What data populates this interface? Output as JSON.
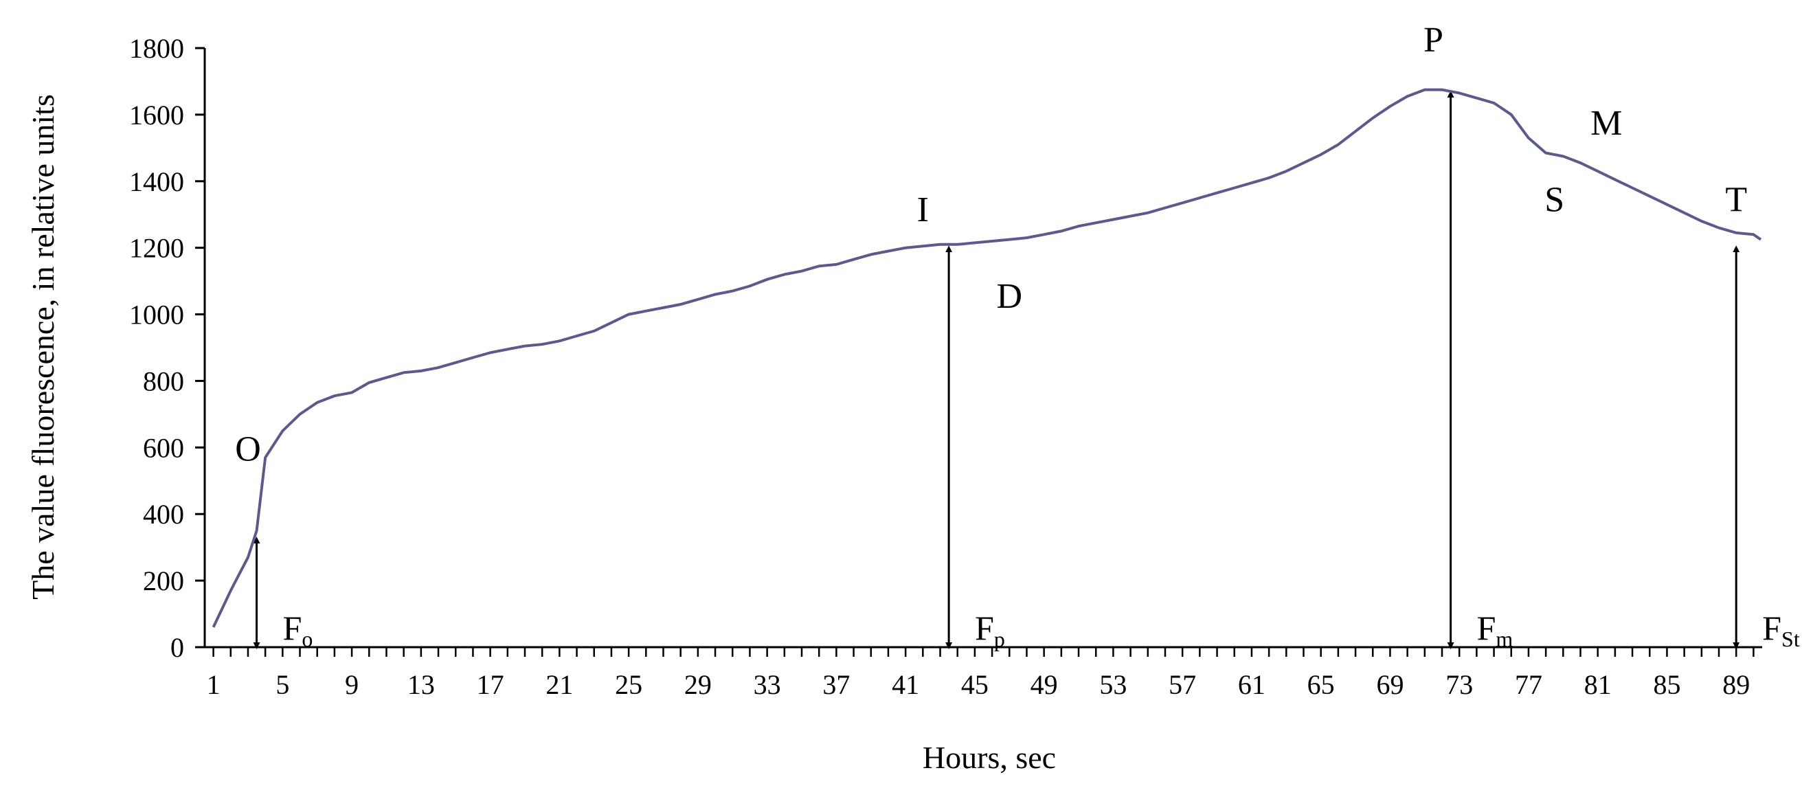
{
  "chart_data": {
    "type": "line",
    "xlabel": "Hours, sec",
    "ylabel": "The value fluorescence, in relative units",
    "xlim": [
      0.5,
      90.5
    ],
    "ylim": [
      0,
      1800
    ],
    "x_ticks": [
      "1",
      "5",
      "9",
      "13",
      "17",
      "21",
      "25",
      "29",
      "33",
      "37",
      "41",
      "45",
      "49",
      "53",
      "57",
      "61",
      "65",
      "69",
      "73",
      "77",
      "81",
      "85",
      "89"
    ],
    "y_ticks": [
      "0",
      "200",
      "400",
      "600",
      "800",
      "1000",
      "1200",
      "1400",
      "1600",
      "1800"
    ],
    "grid": false,
    "line_color": "#5a5a8c",
    "series": [
      {
        "points": [
          [
            1,
            60
          ],
          [
            2,
            170
          ],
          [
            3,
            270
          ],
          [
            3.5,
            350
          ],
          [
            4,
            570
          ],
          [
            5,
            650
          ],
          [
            6,
            700
          ],
          [
            7,
            735
          ],
          [
            8,
            755
          ],
          [
            9,
            765
          ],
          [
            10,
            795
          ],
          [
            11,
            810
          ],
          [
            12,
            825
          ],
          [
            13,
            830
          ],
          [
            14,
            840
          ],
          [
            15,
            855
          ],
          [
            16,
            870
          ],
          [
            17,
            885
          ],
          [
            18,
            895
          ],
          [
            19,
            905
          ],
          [
            20,
            910
          ],
          [
            21,
            920
          ],
          [
            22,
            935
          ],
          [
            23,
            950
          ],
          [
            24,
            975
          ],
          [
            25,
            1000
          ],
          [
            26,
            1010
          ],
          [
            27,
            1020
          ],
          [
            28,
            1030
          ],
          [
            29,
            1045
          ],
          [
            30,
            1060
          ],
          [
            31,
            1070
          ],
          [
            32,
            1085
          ],
          [
            33,
            1105
          ],
          [
            34,
            1120
          ],
          [
            35,
            1130
          ],
          [
            36,
            1145
          ],
          [
            37,
            1150
          ],
          [
            38,
            1165
          ],
          [
            39,
            1180
          ],
          [
            40,
            1190
          ],
          [
            41,
            1200
          ],
          [
            42,
            1205
          ],
          [
            43,
            1210
          ],
          [
            44,
            1210
          ],
          [
            45,
            1215
          ],
          [
            46,
            1220
          ],
          [
            47,
            1225
          ],
          [
            48,
            1230
          ],
          [
            49,
            1240
          ],
          [
            50,
            1250
          ],
          [
            51,
            1265
          ],
          [
            52,
            1275
          ],
          [
            53,
            1285
          ],
          [
            54,
            1295
          ],
          [
            55,
            1305
          ],
          [
            56,
            1320
          ],
          [
            57,
            1335
          ],
          [
            58,
            1350
          ],
          [
            59,
            1365
          ],
          [
            60,
            1380
          ],
          [
            61,
            1395
          ],
          [
            62,
            1410
          ],
          [
            63,
            1430
          ],
          [
            64,
            1455
          ],
          [
            65,
            1480
          ],
          [
            66,
            1510
          ],
          [
            67,
            1550
          ],
          [
            68,
            1590
          ],
          [
            69,
            1625
          ],
          [
            70,
            1655
          ],
          [
            71,
            1675
          ],
          [
            72,
            1675
          ],
          [
            73,
            1665
          ],
          [
            74,
            1650
          ],
          [
            75,
            1635
          ],
          [
            76,
            1600
          ],
          [
            77,
            1530
          ],
          [
            78,
            1485
          ],
          [
            79,
            1475
          ],
          [
            80,
            1455
          ],
          [
            81,
            1430
          ],
          [
            82,
            1405
          ],
          [
            83,
            1380
          ],
          [
            84,
            1355
          ],
          [
            85,
            1330
          ],
          [
            86,
            1305
          ],
          [
            87,
            1280
          ],
          [
            88,
            1260
          ],
          [
            89,
            1245
          ],
          [
            90,
            1240
          ],
          [
            91,
            1225
          ]
        ]
      }
    ],
    "point_labels": [
      {
        "text": "O",
        "x": 3.0,
        "y": 560
      },
      {
        "text": "I",
        "x": 42.0,
        "y": 1280
      },
      {
        "text": "D",
        "x": 47.0,
        "y": 1020
      },
      {
        "text": "P",
        "x": 71.5,
        "y": 1790
      },
      {
        "text": "S",
        "x": 78.5,
        "y": 1310
      },
      {
        "text": "M",
        "x": 81.5,
        "y": 1540
      },
      {
        "text": "T",
        "x": 89.0,
        "y": 1310
      }
    ],
    "arrows": [
      {
        "name": "F",
        "sub": "o",
        "x": 3.5,
        "y_from": 0,
        "y_to": 330
      },
      {
        "name": "F",
        "sub": "p",
        "x": 43.5,
        "y_from": 0,
        "y_to": 1205
      },
      {
        "name": "F",
        "sub": "m",
        "x": 72.5,
        "y_from": 0,
        "y_to": 1670
      },
      {
        "name": "F",
        "sub": "St",
        "x": 89.0,
        "y_from": 0,
        "y_to": 1205
      }
    ]
  }
}
